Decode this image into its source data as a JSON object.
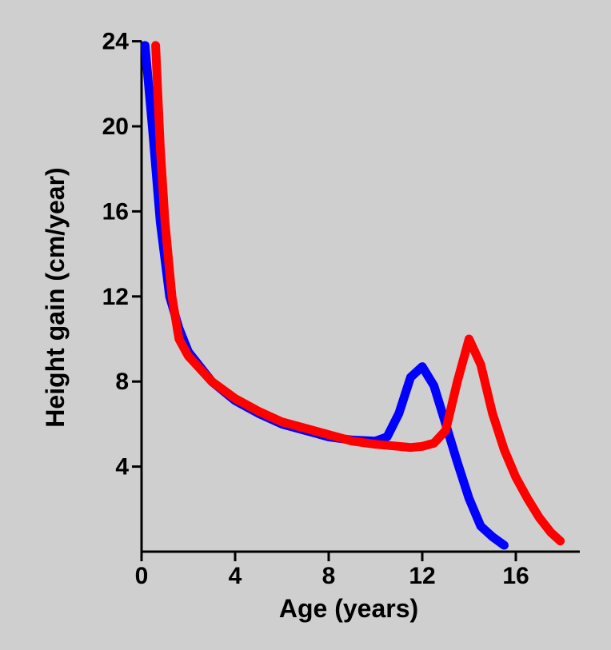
{
  "chart_data": {
    "type": "line",
    "title": "",
    "xlabel": "Age (years)",
    "ylabel": "Height gain (cm/year)",
    "xlim": [
      0,
      18
    ],
    "ylim": [
      0,
      24
    ],
    "xticks": [
      0,
      4,
      8,
      12,
      16
    ],
    "yticks": [
      4,
      8,
      12,
      16,
      20,
      24
    ],
    "grid": false,
    "legend": "none",
    "series": [
      {
        "color": "#0000ff",
        "points": [
          [
            0.15,
            23.8
          ],
          [
            0.5,
            19.5
          ],
          [
            0.8,
            15.5
          ],
          [
            1.2,
            12.0
          ],
          [
            1.6,
            10.5
          ],
          [
            2.0,
            9.4
          ],
          [
            3.0,
            8.0
          ],
          [
            4.0,
            7.1
          ],
          [
            5.0,
            6.5
          ],
          [
            6.0,
            6.0
          ],
          [
            7.0,
            5.7
          ],
          [
            8.0,
            5.4
          ],
          [
            9.0,
            5.25
          ],
          [
            10.0,
            5.2
          ],
          [
            10.5,
            5.4
          ],
          [
            11.0,
            6.5
          ],
          [
            11.5,
            8.2
          ],
          [
            12.0,
            8.7
          ],
          [
            12.5,
            7.8
          ],
          [
            13.0,
            6.0
          ],
          [
            13.5,
            4.2
          ],
          [
            14.0,
            2.5
          ],
          [
            14.5,
            1.2
          ],
          [
            15.0,
            0.7
          ],
          [
            15.5,
            0.3
          ]
        ]
      },
      {
        "color": "#ff0000",
        "points": [
          [
            0.6,
            23.8
          ],
          [
            0.8,
            19.0
          ],
          [
            1.0,
            15.5
          ],
          [
            1.3,
            12.0
          ],
          [
            1.6,
            10.0
          ],
          [
            2.0,
            9.2
          ],
          [
            3.0,
            8.0
          ],
          [
            4.0,
            7.2
          ],
          [
            5.0,
            6.6
          ],
          [
            6.0,
            6.1
          ],
          [
            7.0,
            5.8
          ],
          [
            8.0,
            5.5
          ],
          [
            9.0,
            5.2
          ],
          [
            10.0,
            5.05
          ],
          [
            11.0,
            4.95
          ],
          [
            11.5,
            4.9
          ],
          [
            12.0,
            4.95
          ],
          [
            12.5,
            5.1
          ],
          [
            13.0,
            5.7
          ],
          [
            13.5,
            8.0
          ],
          [
            14.0,
            10.0
          ],
          [
            14.5,
            8.8
          ],
          [
            15.0,
            6.5
          ],
          [
            15.5,
            4.8
          ],
          [
            16.0,
            3.5
          ],
          [
            16.5,
            2.5
          ],
          [
            17.0,
            1.6
          ],
          [
            17.5,
            0.9
          ],
          [
            17.9,
            0.5
          ]
        ]
      }
    ]
  }
}
